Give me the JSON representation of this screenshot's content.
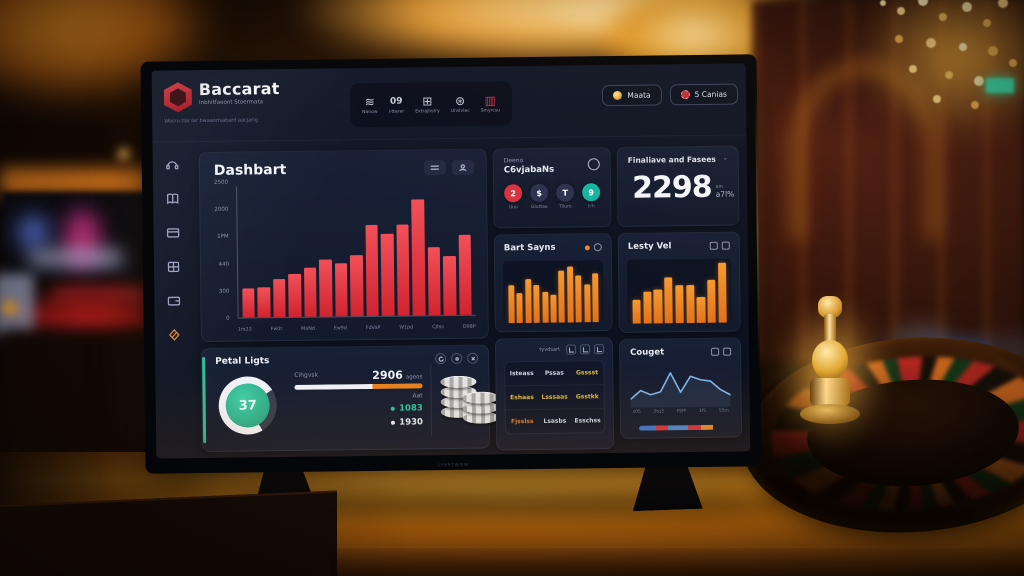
{
  "colors": {
    "accent_red": "#d6333f",
    "accent_orange": "#f08423",
    "accent_teal": "#2fbf9a",
    "gold": "#e8b33c",
    "screen_bg": "#0f1524"
  },
  "screen": {
    "brand": "LYVRTWOW",
    "logo": {
      "title": "Baccarat",
      "subtitle": "Inbhitfaeont Stoermata",
      "tagline": "Wasru tlar lar bwaaorlsabard aacjarig"
    },
    "topnav": {
      "items": [
        {
          "label": "Nanow"
        },
        {
          "label": "I-tterer"
        },
        {
          "label": "Extrajhstry"
        },
        {
          "label": "Uhslvlec"
        },
        {
          "label": "Smyrcsu"
        }
      ]
    },
    "actions": [
      {
        "label": "Maata"
      },
      {
        "label": "5 Canias"
      }
    ],
    "page_title": "Dashbart",
    "cards": {
      "games": {
        "kicker": "Deeno",
        "title": "C6vjabaNs",
        "stats": [
          {
            "value": "2",
            "label": "Uou",
            "color": "#d6333f"
          },
          {
            "value": "$",
            "label": "Gluttaa",
            "color": "#2a3350"
          },
          {
            "value": "T",
            "label": "Tilum",
            "color": "#2a3350"
          },
          {
            "value": "9",
            "label": "h'h",
            "color": "#15b5a2"
          }
        ]
      },
      "revenue": {
        "title": "Finaliave and Fasees",
        "value": "2298",
        "unit_top": "um",
        "unit": "a7l%",
        "chevron": "⌄"
      },
      "bets": {
        "title": "Bart Sayns"
      },
      "daily": {
        "title": "Lesty Vel"
      },
      "totals": {
        "title": "Petal Ligts",
        "ring_value": "37",
        "bar_label": "Cihgvsk",
        "bar_value": "2906",
        "bar_suffix": "ageos",
        "bar_note": "Aat",
        "progress_white": 61,
        "progress_orange": 39,
        "bullets": [
          {
            "text": "1083",
            "color": "#2ec4a0"
          },
          {
            "text": "1930",
            "color": "#e6e9f2"
          }
        ]
      },
      "board": {
        "header_label": "tyvdsart",
        "rows": [
          [
            {
              "text": "Isteass",
              "tone": "light"
            },
            {
              "text": "Pssas",
              "tone": "light"
            },
            {
              "text": "Gsssst",
              "tone": "gold"
            }
          ],
          [
            {
              "text": "Eshaas",
              "tone": "gold"
            },
            {
              "text": "Lsssaas",
              "tone": "gold"
            },
            {
              "text": "Gsstkk",
              "tone": "gold"
            }
          ],
          [
            {
              "text": "Fjsslss",
              "tone": "orange"
            },
            {
              "text": "Lsasbs",
              "tone": "light"
            },
            {
              "text": "Esschss",
              "tone": "light"
            }
          ]
        ]
      },
      "trends": {
        "title": "Couget",
        "legend": [
          {
            "color": "#3f72c8",
            "width": 20
          },
          {
            "color": "#cf3440",
            "width": 14
          },
          {
            "color": "#4a86c8",
            "width": 24
          },
          {
            "color": "#c8353f",
            "width": 16
          },
          {
            "color": "#e0862e",
            "width": 14
          }
        ]
      }
    },
    "nav_icons": [
      "waves-icon",
      "dice-09-icon",
      "grid-icon",
      "wheel-icon",
      "chart-red-icon"
    ]
  },
  "chart_data": [
    {
      "type": "bar",
      "title": "Dashbart revenue bars",
      "values": [
        550,
        580,
        730,
        830,
        940,
        1090,
        1010,
        1160,
        1740,
        1560,
        1740,
        2210,
        1300,
        1120,
        1520
      ],
      "ylim": [
        0,
        2500
      ],
      "yticks": [
        "2500",
        "2000",
        "1PM",
        "440",
        "300",
        "0"
      ],
      "xticks": [
        "1m23",
        "Fw0t",
        "MaNd",
        "Ew9d",
        "FdVaP",
        "W1pd",
        "CJtss",
        "D9BP"
      ],
      "bar_color": "#f25059",
      "bar_color2": "#d02430",
      "grid": false,
      "legend": "none"
    },
    {
      "type": "bar",
      "title": "Bart Sayns",
      "values": [
        65,
        51,
        76,
        65,
        54,
        49,
        89,
        97,
        81,
        65,
        84
      ],
      "ylim": [
        0,
        100
      ],
      "bar_color": "#f59a31",
      "bar_color2": "#e2711a"
    },
    {
      "type": "bar",
      "title": "Lesty Vel",
      "values": [
        40,
        53,
        57,
        77,
        64,
        64,
        43,
        72,
        100
      ],
      "ylim": [
        0,
        100
      ],
      "bar_color": "#f59a31",
      "bar_color2": "#e2711a"
    },
    {
      "type": "line",
      "title": "Couget trend",
      "values": [
        18,
        42,
        30,
        38,
        90,
        36,
        80,
        70,
        66,
        42,
        27
      ],
      "ylim": [
        0,
        100
      ],
      "xticks": [
        "s05",
        "2tq3",
        "F9fP",
        "3f5",
        "55m"
      ],
      "line_color": "#7fb3e8"
    }
  ]
}
